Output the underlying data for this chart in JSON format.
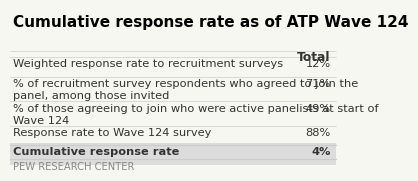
{
  "title": "Cumulative response rate as of ATP Wave 124",
  "header": "Total",
  "rows": [
    {
      "label": "Weighted response rate to recruitment surveys",
      "value": "12%",
      "bold": false
    },
    {
      "label": "% of recruitment survey respondents who agreed to join the\npanel, among those invited",
      "value": "71%",
      "bold": false
    },
    {
      "label": "% of those agreeing to join who were active panelists at start of\nWave 124",
      "value": "49%",
      "bold": false
    },
    {
      "label": "Response rate to Wave 124 survey",
      "value": "88%",
      "bold": false
    },
    {
      "label": "Cumulative response rate",
      "value": "4%",
      "bold": true
    }
  ],
  "footer": "PEW RESEARCH CENTER",
  "bg_color": "#f7f7f2",
  "title_color": "#000000",
  "text_color": "#333333",
  "line_color": "#cccccc",
  "title_fontsize": 11.0,
  "body_fontsize": 8.2,
  "header_fontsize": 8.8,
  "footer_fontsize": 7.2
}
